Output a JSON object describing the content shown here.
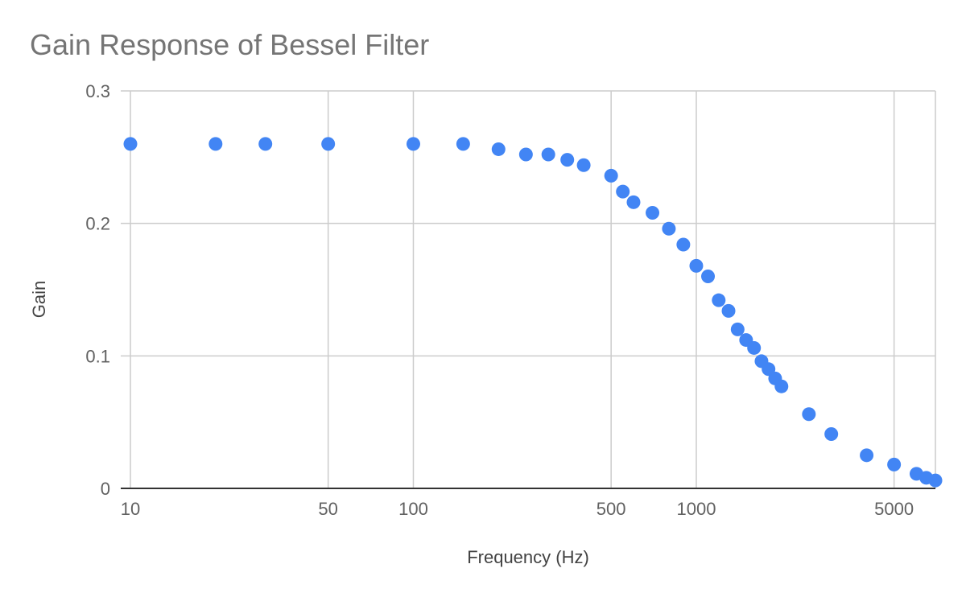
{
  "chart_data": {
    "type": "scatter",
    "title": "Gain Response of Bessel Filter",
    "xlabel": "Frequency (Hz)",
    "ylabel": "Gain",
    "x_scale": "log",
    "xlim": [
      10,
      7000
    ],
    "ylim": [
      0,
      0.3
    ],
    "x_ticks": [
      {
        "value": 10,
        "label": "10"
      },
      {
        "value": 50,
        "label": "50"
      },
      {
        "value": 100,
        "label": "100"
      },
      {
        "value": 500,
        "label": "500"
      },
      {
        "value": 1000,
        "label": "1000"
      },
      {
        "value": 5000,
        "label": "5000"
      }
    ],
    "x_gridlines": [
      10,
      50,
      100,
      500,
      1000,
      5000
    ],
    "y_ticks": [
      {
        "value": 0,
        "label": "0"
      },
      {
        "value": 0.1,
        "label": "0.1"
      },
      {
        "value": 0.2,
        "label": "0.2"
      },
      {
        "value": 0.3,
        "label": "0.3"
      }
    ],
    "grid": true,
    "legend": "none",
    "color": "#4285f4",
    "series": [
      {
        "points": [
          {
            "x": 10,
            "y": 0.26
          },
          {
            "x": 20,
            "y": 0.26
          },
          {
            "x": 30,
            "y": 0.26
          },
          {
            "x": 50,
            "y": 0.26
          },
          {
            "x": 100,
            "y": 0.26
          },
          {
            "x": 150,
            "y": 0.26
          },
          {
            "x": 200,
            "y": 0.256
          },
          {
            "x": 250,
            "y": 0.252
          },
          {
            "x": 300,
            "y": 0.252
          },
          {
            "x": 350,
            "y": 0.248
          },
          {
            "x": 400,
            "y": 0.244
          },
          {
            "x": 500,
            "y": 0.236
          },
          {
            "x": 550,
            "y": 0.224
          },
          {
            "x": 600,
            "y": 0.216
          },
          {
            "x": 700,
            "y": 0.208
          },
          {
            "x": 800,
            "y": 0.196
          },
          {
            "x": 900,
            "y": 0.184
          },
          {
            "x": 1000,
            "y": 0.168
          },
          {
            "x": 1100,
            "y": 0.16
          },
          {
            "x": 1200,
            "y": 0.142
          },
          {
            "x": 1300,
            "y": 0.134
          },
          {
            "x": 1400,
            "y": 0.12
          },
          {
            "x": 1500,
            "y": 0.112
          },
          {
            "x": 1600,
            "y": 0.106
          },
          {
            "x": 1700,
            "y": 0.096
          },
          {
            "x": 1800,
            "y": 0.09
          },
          {
            "x": 1900,
            "y": 0.083
          },
          {
            "x": 2000,
            "y": 0.077
          },
          {
            "x": 2500,
            "y": 0.056
          },
          {
            "x": 3000,
            "y": 0.041
          },
          {
            "x": 4000,
            "y": 0.025
          },
          {
            "x": 5000,
            "y": 0.018
          },
          {
            "x": 6000,
            "y": 0.011
          },
          {
            "x": 6500,
            "y": 0.008
          },
          {
            "x": 7000,
            "y": 0.006
          }
        ]
      }
    ]
  }
}
